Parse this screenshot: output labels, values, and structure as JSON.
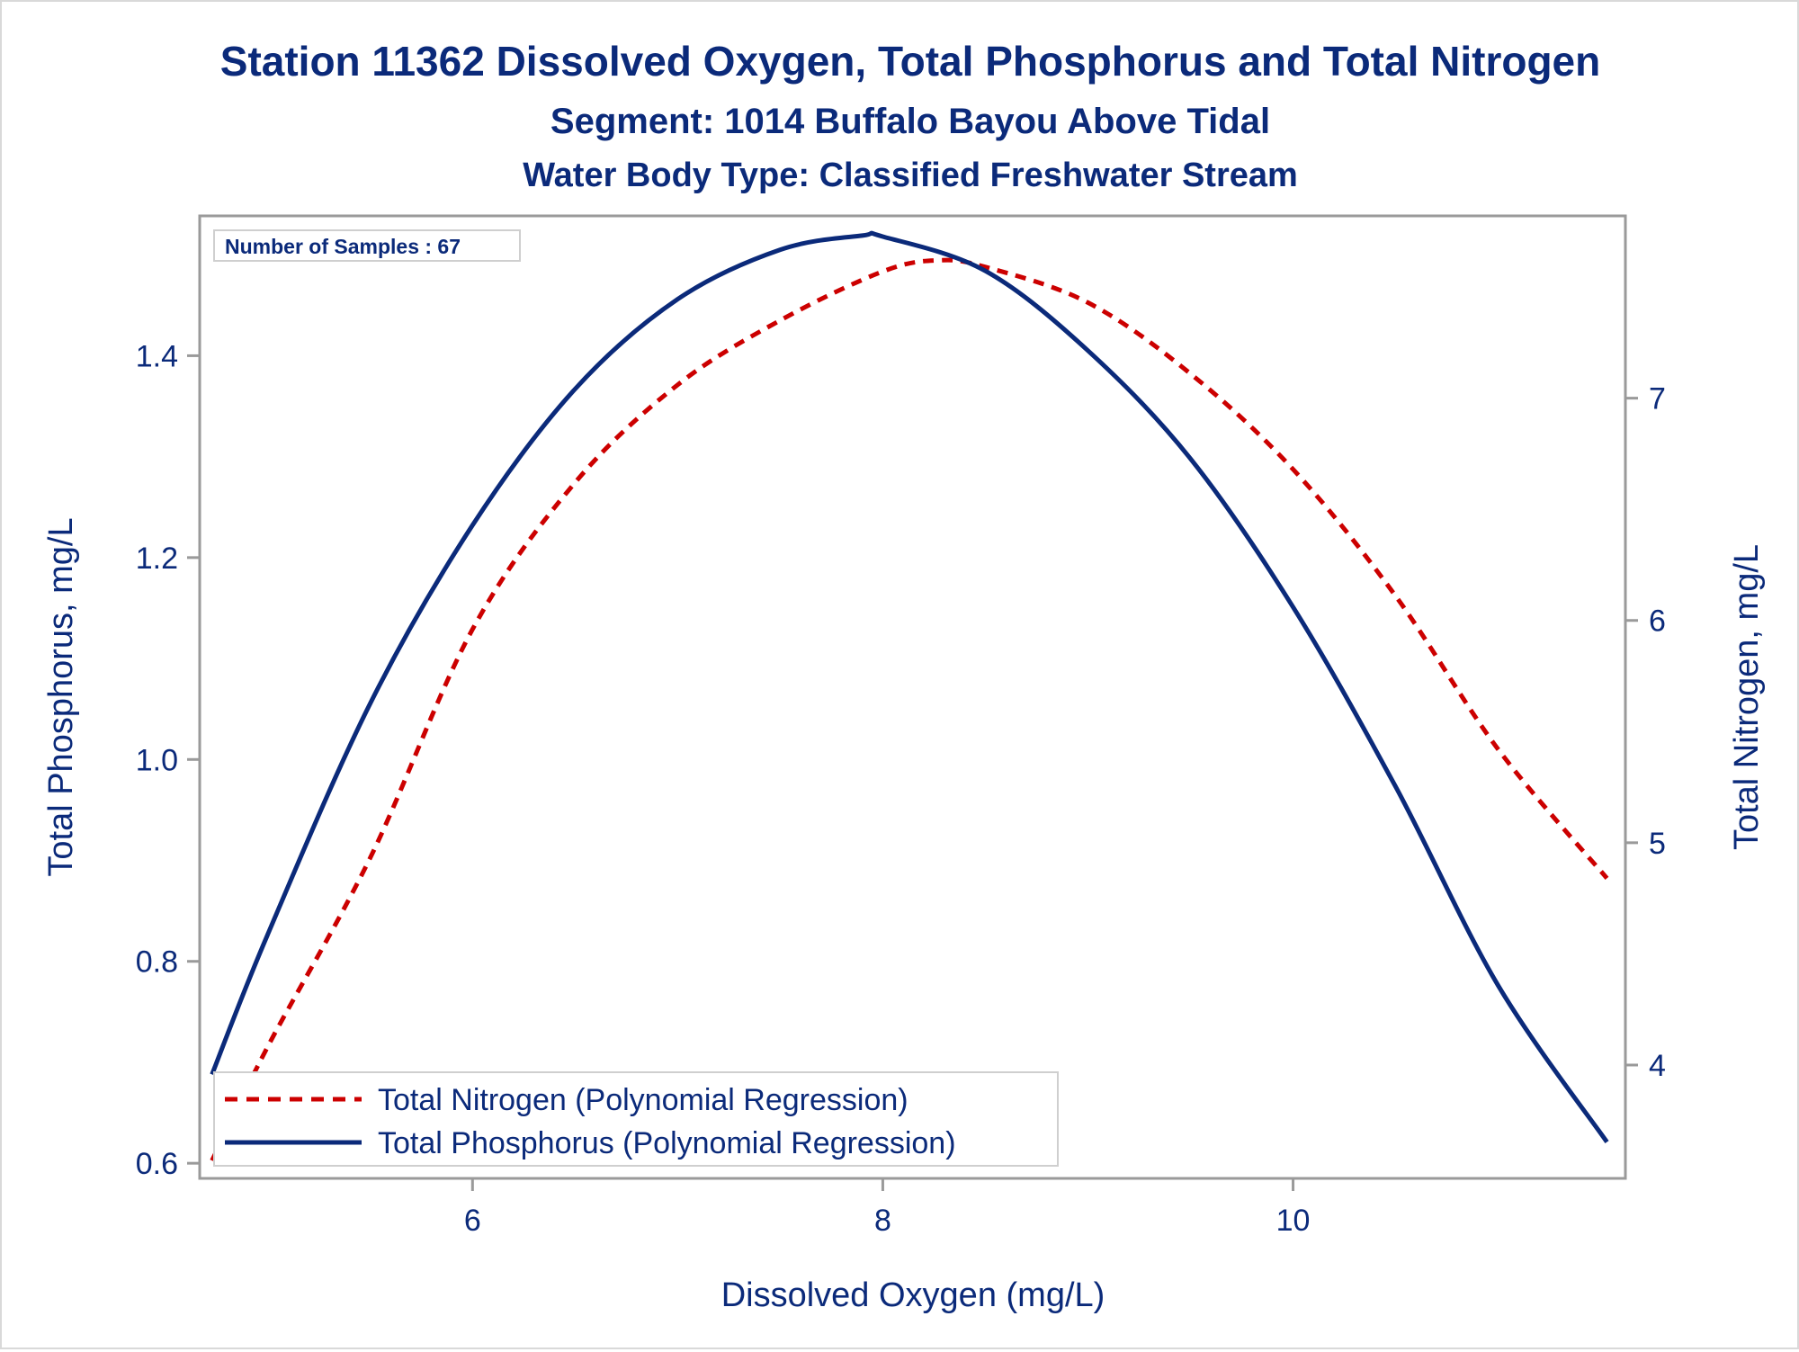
{
  "chart_data": {
    "type": "line",
    "title": "Station 11362  Dissolved Oxygen, Total Phosphorus and Total Nitrogen",
    "subtitle": "Segment: 1014  Buffalo Bayou Above Tidal",
    "subtitle2": "Water Body Type: Classified Freshwater Stream",
    "annotation": "Number of Samples : 67",
    "xlabel": "Dissolved Oxygen (mg/L)",
    "ylabel": "Total Phosphorus, mg/L",
    "y2label": "Total Nitrogen, mg/L",
    "xlim": [
      4.67,
      11.62
    ],
    "ylim": [
      0.585,
      1.5385
    ],
    "y2lim": [
      3.49,
      7.82
    ],
    "xticks": [
      6,
      8,
      10
    ],
    "yticks": [
      0.6,
      0.8,
      1.0,
      1.2,
      1.4
    ],
    "y2ticks": [
      4,
      5,
      6,
      7
    ],
    "ytick_labels": [
      "0.6",
      "0.8",
      "1.0",
      "1.2",
      "1.4"
    ],
    "grid": false,
    "legend_position": "bottom-left",
    "series": [
      {
        "name": "Total Nitrogen (Polynomial Regression)",
        "axis": "right",
        "style": "dashed",
        "color": "#cc0000",
        "x": [
          4.73,
          5.0,
          5.5,
          6.0,
          6.5,
          7.0,
          7.5,
          8.0,
          8.27,
          8.5,
          9.0,
          9.5,
          10.0,
          10.5,
          11.0,
          11.53
        ],
        "values": [
          3.57,
          4.08,
          4.93,
          5.96,
          6.62,
          7.06,
          7.35,
          7.57,
          7.62,
          7.59,
          7.43,
          7.11,
          6.68,
          6.11,
          5.42,
          4.84
        ]
      },
      {
        "name": "Total Phosphorus (Polynomial Regression)",
        "axis": "left",
        "style": "solid",
        "color": "#0b2a7a",
        "x": [
          4.73,
          5.0,
          5.5,
          6.0,
          6.5,
          7.0,
          7.5,
          7.9,
          8.0,
          8.5,
          9.0,
          9.5,
          10.0,
          10.5,
          11.0,
          11.53
        ],
        "values": [
          0.688,
          0.826,
          1.055,
          1.232,
          1.367,
          1.456,
          1.505,
          1.519,
          1.518,
          1.484,
          1.405,
          1.298,
          1.151,
          0.973,
          0.776,
          0.621
        ]
      }
    ]
  }
}
